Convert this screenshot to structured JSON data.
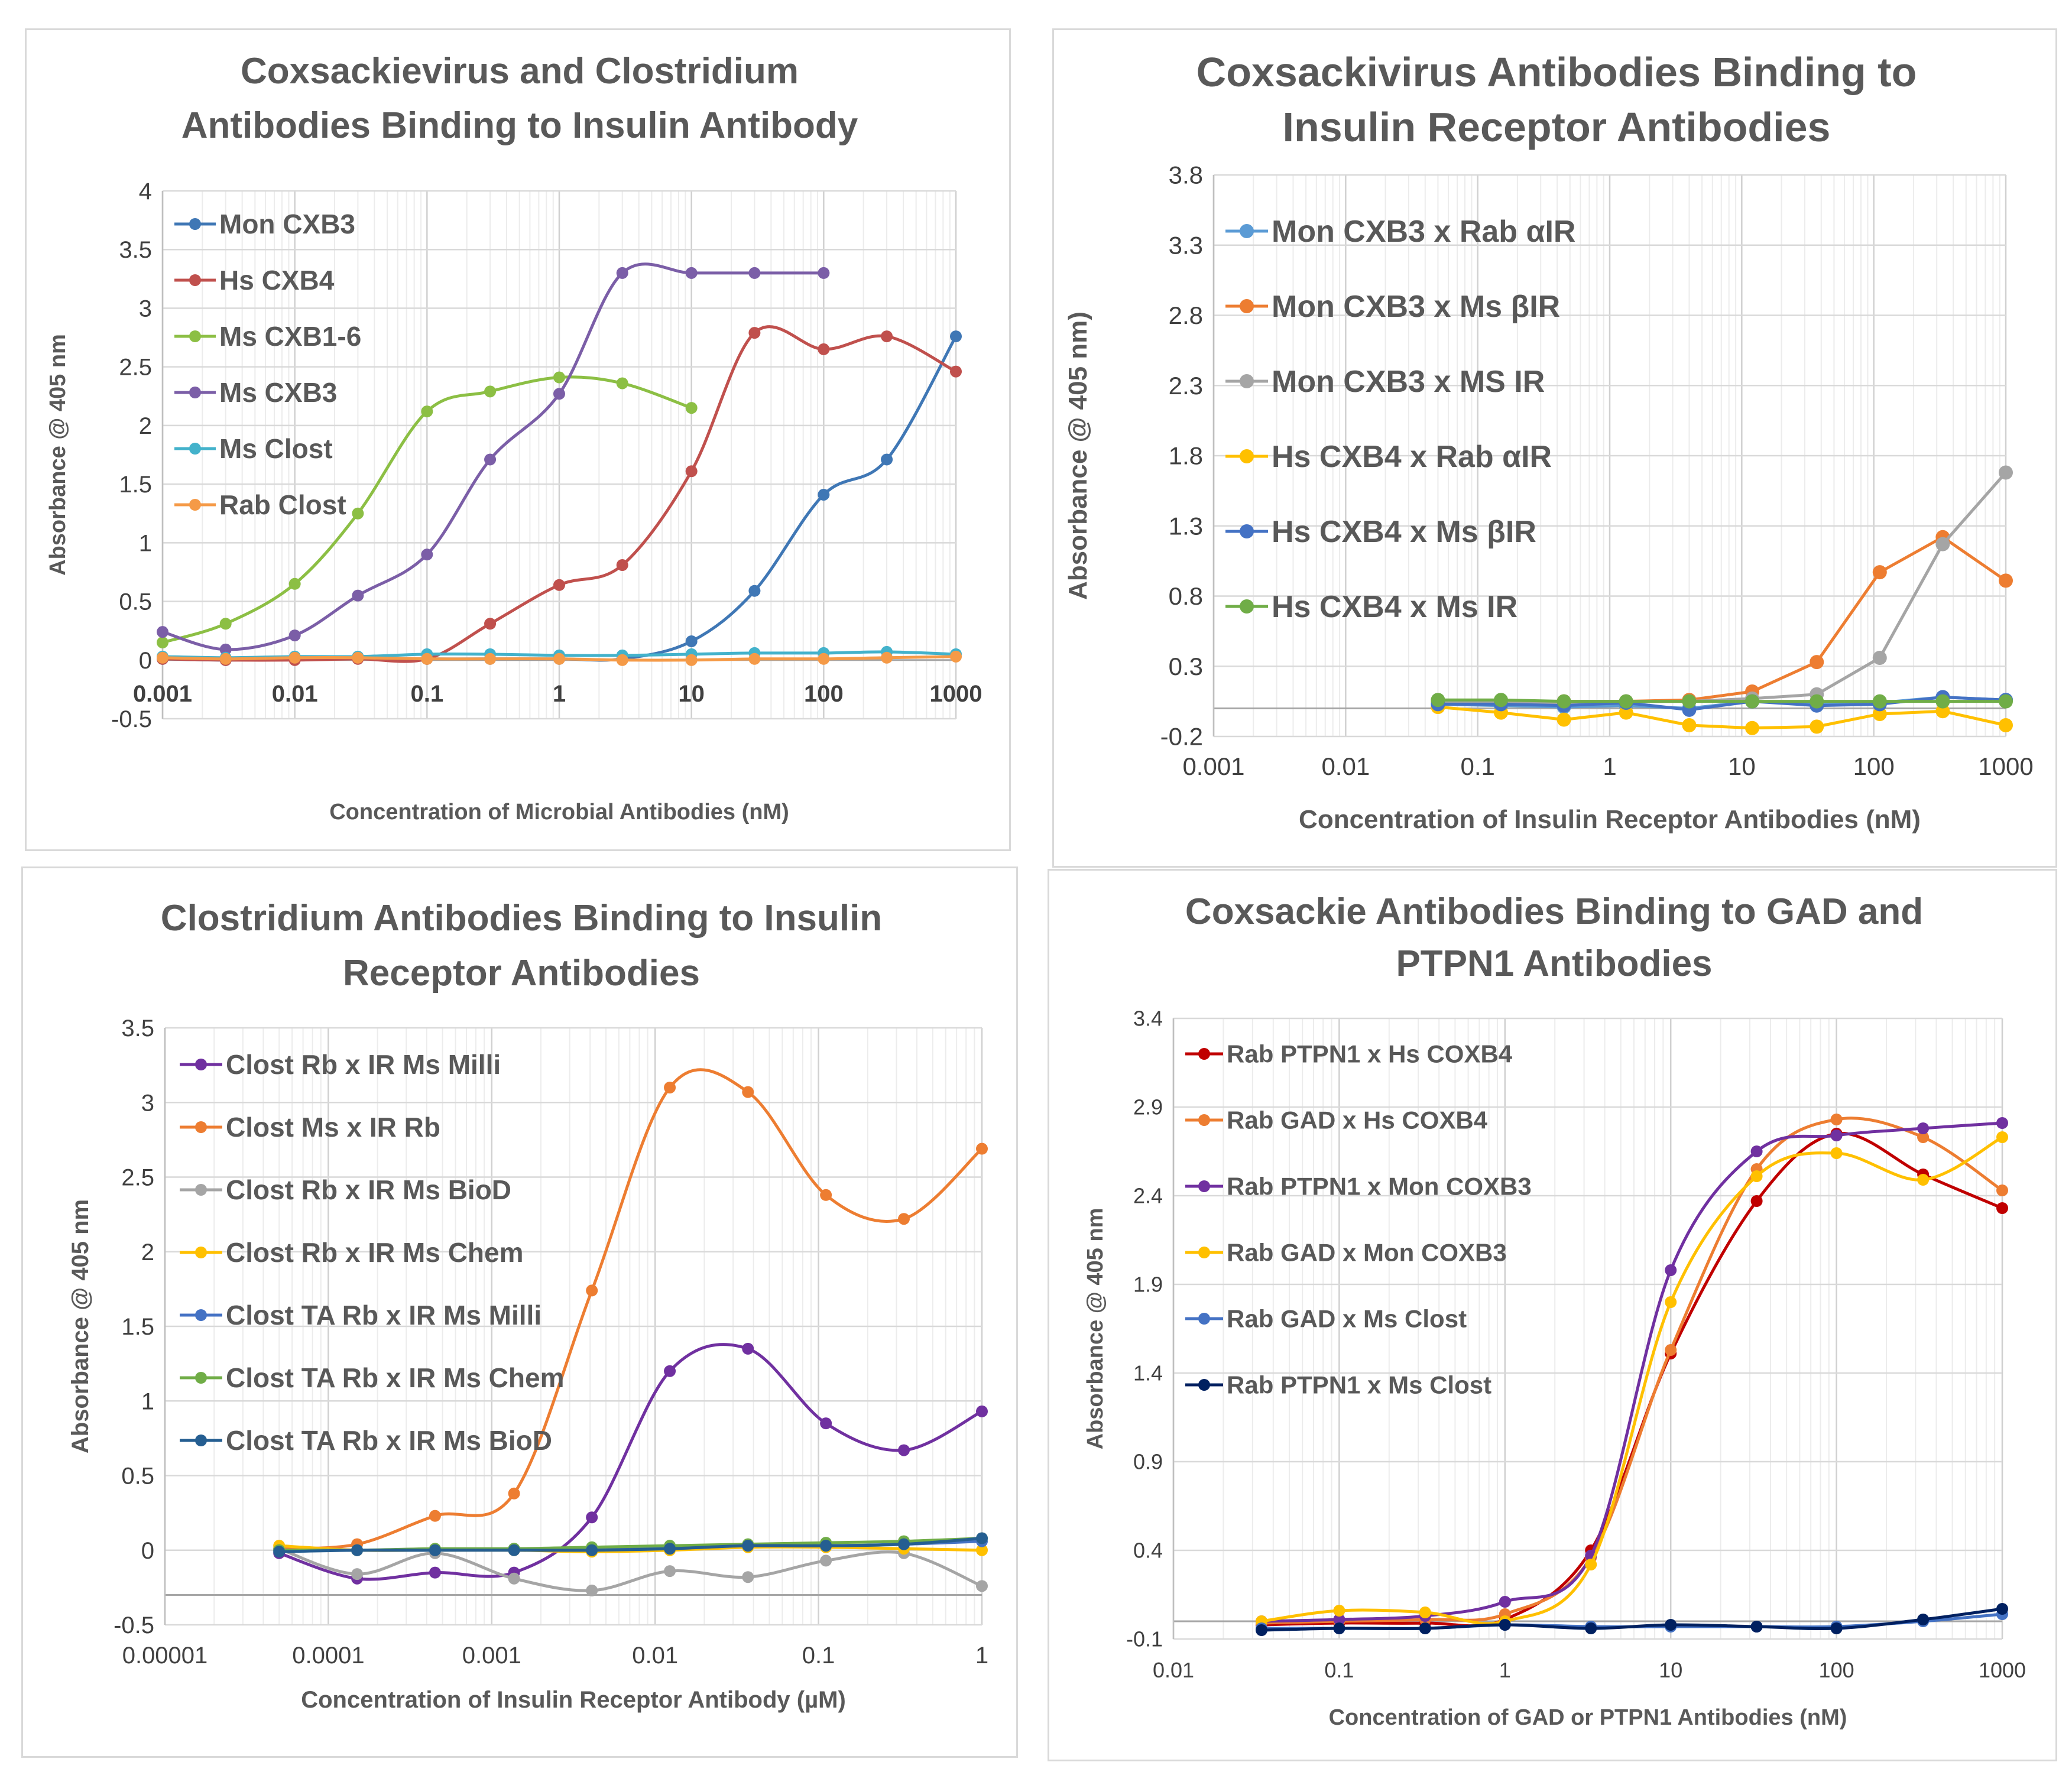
{
  "chart_data": [
    {
      "type": "line",
      "title_lines": [
        "Coxsackievirus and Clostridium",
        "Antibodies Binding to Insulin Antibody"
      ],
      "xlabel": "Concentration of Microbial Antibodies (nM)",
      "ylabel": "Absorbance @ 405 nm",
      "x_scale": "log",
      "xlim": [
        0.001,
        1000
      ],
      "ylim": [
        -0.5,
        4
      ],
      "x_ticks": [
        0.001,
        0.01,
        0.1,
        1,
        10,
        100,
        1000
      ],
      "x_tick_labels": [
        "0.001",
        "0.01",
        "0.1",
        "1",
        "10",
        "100",
        "1000"
      ],
      "y_ticks": [
        -0.5,
        0,
        0.5,
        1,
        1.5,
        2,
        2.5,
        3,
        3.5,
        4
      ],
      "y_tick_labels": [
        "-0.5",
        "0",
        "0.5",
        "1",
        "1.5",
        "2",
        "2.5",
        "3",
        "3.5",
        "4"
      ],
      "legend": "top-left",
      "series": [
        {
          "name": "Mon CXB3",
          "color": "#3f77b5",
          "x": [
            0.001,
            0.003,
            0.01,
            0.03,
            0.1,
            0.3,
            1,
            3,
            10,
            30,
            100,
            300,
            1000
          ],
          "values": [
            0.01,
            0.0,
            0.01,
            0.02,
            0.01,
            0.01,
            0.01,
            0.01,
            0.16,
            0.59,
            1.41,
            1.71,
            2.76
          ]
        },
        {
          "name": "Hs CXB4",
          "color": "#c0504d",
          "x": [
            0.001,
            0.003,
            0.01,
            0.03,
            0.1,
            0.3,
            1,
            3,
            10,
            30,
            100,
            300,
            1000
          ],
          "values": [
            0.01,
            0.0,
            0.0,
            0.01,
            0.01,
            0.31,
            0.64,
            0.81,
            1.61,
            2.79,
            2.65,
            2.76,
            2.46
          ]
        },
        {
          "name": "Ms CXB1-6",
          "color": "#8cbf44",
          "x": [
            0.001,
            0.003,
            0.01,
            0.03,
            0.1,
            0.3,
            1,
            3,
            10
          ],
          "values": [
            0.15,
            0.31,
            0.65,
            1.25,
            2.12,
            2.29,
            2.41,
            2.36,
            2.15
          ]
        },
        {
          "name": "Ms CXB3",
          "color": "#7b5ea7",
          "x": [
            0.001,
            0.003,
            0.01,
            0.03,
            0.1,
            0.3,
            1,
            3,
            10,
            30,
            100
          ],
          "values": [
            0.24,
            0.09,
            0.21,
            0.55,
            0.9,
            1.71,
            2.27,
            3.3,
            3.3,
            3.3,
            3.3
          ]
        },
        {
          "name": "Ms Clost",
          "color": "#43b2cb",
          "x": [
            0.001,
            0.003,
            0.01,
            0.03,
            0.1,
            0.3,
            1,
            3,
            10,
            30,
            100,
            300,
            1000
          ],
          "values": [
            0.03,
            0.02,
            0.03,
            0.03,
            0.05,
            0.05,
            0.04,
            0.04,
            0.05,
            0.06,
            0.06,
            0.07,
            0.05
          ]
        },
        {
          "name": "Rab Clost",
          "color": "#f59a47",
          "x": [
            0.001,
            0.003,
            0.01,
            0.03,
            0.1,
            0.3,
            1,
            3,
            10,
            30,
            100,
            300,
            1000
          ],
          "values": [
            0.02,
            0.01,
            0.02,
            0.02,
            0.01,
            0.01,
            0.01,
            0.0,
            0.0,
            0.01,
            0.01,
            0.02,
            0.03
          ]
        }
      ]
    },
    {
      "type": "line",
      "title_lines": [
        "Coxsackivirus Antibodies Binding to",
        "Insulin Receptor Antibodies"
      ],
      "xlabel": "Concentration of Insulin Receptor Antibodies (nM)",
      "ylabel": "Absorbance @ 405 nm)",
      "x_scale": "log",
      "xlim": [
        0.001,
        1000
      ],
      "ylim": [
        -0.2,
        3.8
      ],
      "x_ticks": [
        0.001,
        0.01,
        0.1,
        1,
        10,
        100,
        1000
      ],
      "x_tick_labels": [
        "0.001",
        "0.01",
        "0.1",
        "1",
        "10",
        "100",
        "1000"
      ],
      "y_ticks": [
        -0.2,
        0.3,
        0.8,
        1.3,
        1.8,
        2.3,
        2.8,
        3.3,
        3.8
      ],
      "y_tick_labels": [
        "-0.2",
        "0.3",
        "0.8",
        "1.3",
        "1.8",
        "2.3",
        "2.8",
        "3.3",
        "3.8"
      ],
      "legend": "top-left",
      "series": [
        {
          "name": "Mon CXB3 x Rab αIR",
          "color": "#5b9bd5",
          "x": [
            0.05,
            0.15,
            0.45,
            1.33,
            4,
            12,
            37,
            111,
            333,
            1000
          ],
          "values": [
            0.03,
            0.02,
            0.01,
            0.02,
            0.0,
            0.05,
            0.03,
            0.04,
            0.08,
            0.06
          ]
        },
        {
          "name": "Mon CXB3 x Ms βIR",
          "color": "#ed7d31",
          "x": [
            0.05,
            0.15,
            0.45,
            1.33,
            4,
            12,
            37,
            111,
            333,
            1000
          ],
          "values": [
            0.05,
            0.05,
            0.05,
            0.05,
            0.06,
            0.12,
            0.33,
            0.97,
            1.22,
            0.91
          ]
        },
        {
          "name": "Mon CXB3 x MS IR",
          "color": "#a5a5a5",
          "x": [
            0.05,
            0.15,
            0.45,
            1.33,
            4,
            12,
            37,
            111,
            333,
            1000
          ],
          "values": [
            0.04,
            0.04,
            0.04,
            0.05,
            0.05,
            0.07,
            0.1,
            0.36,
            1.17,
            1.68
          ]
        },
        {
          "name": "Hs CXB4 x Rab αIR",
          "color": "#ffc000",
          "x": [
            0.05,
            0.15,
            0.45,
            1.33,
            4,
            12,
            37,
            111,
            333,
            1000
          ],
          "values": [
            0.01,
            -0.03,
            -0.08,
            -0.03,
            -0.12,
            -0.14,
            -0.13,
            -0.04,
            -0.02,
            -0.12
          ]
        },
        {
          "name": "Hs CXB4 x Ms βIR",
          "color": "#4472c4",
          "x": [
            0.05,
            0.15,
            0.45,
            1.33,
            4,
            12,
            37,
            111,
            333,
            1000
          ],
          "values": [
            0.03,
            0.03,
            0.02,
            0.04,
            -0.01,
            0.05,
            0.02,
            0.03,
            0.08,
            0.06
          ]
        },
        {
          "name": "Hs CXB4 x Ms IR",
          "color": "#70ad47",
          "x": [
            0.05,
            0.15,
            0.45,
            1.33,
            4,
            12,
            37,
            111,
            333,
            1000
          ],
          "values": [
            0.06,
            0.06,
            0.05,
            0.05,
            0.05,
            0.05,
            0.05,
            0.05,
            0.05,
            0.05
          ]
        }
      ]
    },
    {
      "type": "line",
      "smooth": true,
      "title_lines": [
        "Clostridium Antibodies Binding to Insulin",
        "Receptor Antibodies"
      ],
      "xlabel": "Concentration of Insulin Receptor Antibody (µM)",
      "ylabel": "Absorbance @ 405 nm",
      "x_scale": "log",
      "xlim": [
        1e-05,
        1
      ],
      "ylim": [
        -0.5,
        3.5
      ],
      "x_ticks": [
        1e-05,
        0.0001,
        0.001,
        0.01,
        0.1,
        1
      ],
      "x_tick_labels": [
        "0.00001",
        "0.0001",
        "0.001",
        "0.01",
        "0.1",
        "1"
      ],
      "y_ticks": [
        -0.5,
        0,
        0.5,
        1,
        1.5,
        2,
        2.5,
        3,
        3.5
      ],
      "y_tick_labels": [
        "-0.5",
        "0",
        "0.5",
        "1",
        "1.5",
        "2",
        "2.5",
        "3",
        "3.5"
      ],
      "y_axis_line_value": -0.3,
      "legend": "top-left",
      "series": [
        {
          "name": "Clost Rb x IR Ms Milli",
          "color": "#7030a0",
          "x": [
            5e-05,
            0.00015,
            0.00045,
            0.00137,
            0.0041,
            0.0123,
            0.037,
            0.111,
            0.333,
            1
          ],
          "values": [
            -0.02,
            -0.19,
            -0.15,
            -0.15,
            0.22,
            1.2,
            1.35,
            0.85,
            0.67,
            0.93
          ]
        },
        {
          "name": "Clost Ms x IR Rb",
          "color": "#ed7d31",
          "x": [
            5e-05,
            0.00015,
            0.00045,
            0.00137,
            0.0041,
            0.0123,
            0.037,
            0.111,
            0.333,
            1
          ],
          "values": [
            0.01,
            0.04,
            0.23,
            0.38,
            1.74,
            3.1,
            3.07,
            2.38,
            2.22,
            2.69
          ]
        },
        {
          "name": "Clost Rb x IR Ms BioD",
          "color": "#a5a5a5",
          "x": [
            5e-05,
            0.00015,
            0.00045,
            0.00137,
            0.0041,
            0.0123,
            0.037,
            0.111,
            0.333,
            1
          ],
          "values": [
            0.01,
            -0.16,
            -0.02,
            -0.19,
            -0.27,
            -0.14,
            -0.18,
            -0.07,
            -0.02,
            -0.24
          ]
        },
        {
          "name": "Clost Rb x IR Ms Chem",
          "color": "#ffc000",
          "x": [
            5e-05,
            0.00015,
            0.00045,
            0.00137,
            0.0041,
            0.0123,
            0.037,
            0.111,
            0.333,
            1
          ],
          "values": [
            0.03,
            0.0,
            0.0,
            0.0,
            -0.01,
            0.0,
            0.02,
            0.02,
            0.01,
            0.0
          ]
        },
        {
          "name": "Clost TA Rb x IR Ms Milli",
          "color": "#4472c4",
          "x": [
            5e-05,
            0.00015,
            0.00045,
            0.00137,
            0.0041,
            0.0123,
            0.037,
            0.111,
            0.333,
            1
          ],
          "values": [
            0.0,
            0.0,
            0.0,
            0.01,
            0.01,
            0.02,
            0.03,
            0.03,
            0.04,
            0.06
          ]
        },
        {
          "name": "Clost TA Rb x IR Ms Chem",
          "color": "#70ad47",
          "x": [
            5e-05,
            0.00015,
            0.00045,
            0.00137,
            0.0041,
            0.0123,
            0.037,
            0.111,
            0.333,
            1
          ],
          "values": [
            0.0,
            0.0,
            0.01,
            0.01,
            0.02,
            0.03,
            0.04,
            0.05,
            0.06,
            0.08
          ]
        },
        {
          "name": "Clost TA Rb x IR Ms BioD",
          "color": "#255e91",
          "x": [
            5e-05,
            0.00015,
            0.00045,
            0.00137,
            0.0041,
            0.0123,
            0.037,
            0.111,
            0.333,
            1
          ],
          "values": [
            -0.01,
            0.0,
            0.0,
            0.0,
            0.0,
            0.01,
            0.03,
            0.03,
            0.04,
            0.08
          ]
        }
      ]
    },
    {
      "type": "line",
      "smooth": true,
      "title_lines": [
        "Coxsackie Antibodies Binding to GAD and",
        "PTPN1 Antibodies"
      ],
      "xlabel": "Concentration of GAD or PTPN1 Antibodies (nM)",
      "ylabel": "Absorbance @ 405 nm",
      "x_scale": "log",
      "xlim": [
        0.01,
        1000
      ],
      "ylim": [
        -0.1,
        3.4
      ],
      "x_ticks": [
        0.01,
        0.1,
        1,
        10,
        100,
        1000
      ],
      "x_tick_labels": [
        "0.01",
        "0.1",
        "1",
        "10",
        "100",
        "1000"
      ],
      "y_ticks": [
        -0.1,
        0.4,
        0.9,
        1.4,
        1.9,
        2.4,
        2.9,
        3.4
      ],
      "y_tick_labels": [
        "-0.1",
        "0.4",
        "0.9",
        "1.4",
        "1.9",
        "2.4",
        "2.9",
        "3.4"
      ],
      "y_axis_line_value": 0,
      "legend": "top-left",
      "series": [
        {
          "name": "Rab PTPN1 x Hs COXB4",
          "color": "#c00000",
          "x": [
            0.034,
            0.1,
            0.33,
            1,
            3.3,
            10,
            33,
            100,
            333,
            1000
          ],
          "values": [
            -0.02,
            -0.01,
            -0.01,
            0.01,
            0.4,
            1.51,
            2.37,
            2.75,
            2.52,
            2.33
          ]
        },
        {
          "name": "Rab GAD x Hs COXB4",
          "color": "#ed7d31",
          "x": [
            0.034,
            0.1,
            0.33,
            1,
            3.3,
            10,
            33,
            100,
            333,
            1000
          ],
          "values": [
            -0.01,
            0.0,
            0.01,
            0.04,
            0.36,
            1.53,
            2.55,
            2.83,
            2.73,
            2.43
          ]
        },
        {
          "name": "Rab PTPN1 x Mon COXB3",
          "color": "#7030a0",
          "x": [
            0.034,
            0.1,
            0.33,
            1,
            3.3,
            10,
            33,
            100,
            333,
            1000
          ],
          "values": [
            0.0,
            0.01,
            0.03,
            0.11,
            0.37,
            1.98,
            2.65,
            2.74,
            2.78,
            2.81
          ]
        },
        {
          "name": "Rab GAD x Mon COXB3",
          "color": "#ffc000",
          "x": [
            0.034,
            0.1,
            0.33,
            1,
            3.3,
            10,
            33,
            100,
            333,
            1000
          ],
          "values": [
            0.0,
            0.06,
            0.05,
            0.0,
            0.32,
            1.8,
            2.51,
            2.64,
            2.49,
            2.73
          ]
        },
        {
          "name": "Rab GAD x Ms Clost",
          "color": "#4472c4",
          "x": [
            0.034,
            0.1,
            0.33,
            1,
            3.3,
            10,
            33,
            100,
            333,
            1000
          ],
          "values": [
            -0.04,
            -0.04,
            -0.04,
            -0.02,
            -0.03,
            -0.03,
            -0.03,
            -0.03,
            0.0,
            0.04
          ]
        },
        {
          "name": "Rab PTPN1 x Ms Clost",
          "color": "#002060",
          "x": [
            0.034,
            0.1,
            0.33,
            1,
            3.3,
            10,
            33,
            100,
            333,
            1000
          ],
          "values": [
            -0.05,
            -0.04,
            -0.04,
            -0.02,
            -0.04,
            -0.02,
            -0.03,
            -0.04,
            0.01,
            0.07
          ]
        }
      ]
    }
  ]
}
